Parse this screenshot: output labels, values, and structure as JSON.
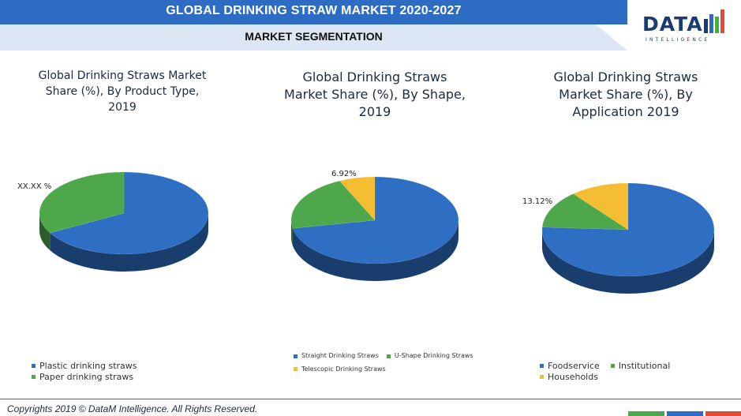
{
  "header": {
    "title": "GLOBAL DRINKING STRAW MARKET 2020-2027",
    "subtitle": "MARKET SEGMENTATION"
  },
  "logo": {
    "word": "DATA",
    "sub": "INTELLIGENCE"
  },
  "colors": {
    "blue": "#2e6fc4",
    "green": "#4ea84b",
    "yellow": "#f5bd32",
    "banner": "#2e6cc4"
  },
  "chart_data": [
    {
      "type": "pie",
      "title": "Global Drinking Straws Market Share (%), By Product Type, 2019",
      "slices": [
        {
          "label": "Plastic drinking straws",
          "value": 67.0
        },
        {
          "label": "Paper drinking straws",
          "value": 33.0
        }
      ],
      "data_labels": [
        {
          "text": "XX.XX %"
        }
      ],
      "legend": "bottom"
    },
    {
      "type": "pie",
      "title": "Global Drinking Straws Market Share (%), By Shape, 2019",
      "slices": [
        {
          "label": "Straight Drinking Straws",
          "value": 72.0
        },
        {
          "label": "U-Shape Drinking Straws",
          "value": 21.08
        },
        {
          "label": "Telescopic Drinking Straws",
          "value": 6.92
        }
      ],
      "data_labels": [
        {
          "text": "6.92%"
        }
      ],
      "legend": "bottom"
    },
    {
      "type": "pie",
      "title": "Global Drinking Straws Market Share (%), By Application 2019",
      "slices": [
        {
          "label": "Foodservice",
          "value": 75.88
        },
        {
          "label": "Institutional",
          "value": 13.12
        },
        {
          "label": "Households",
          "value": 11.0
        }
      ],
      "data_labels": [
        {
          "text": "13.12%"
        }
      ],
      "legend": "bottom"
    }
  ],
  "footer": {
    "copyright": "Copyrights 2019 © DataM Intelligence. All Rights Reserved."
  }
}
